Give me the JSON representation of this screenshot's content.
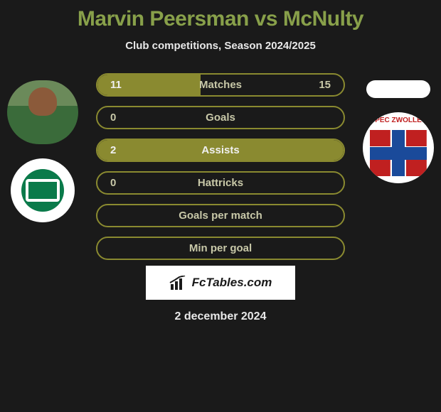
{
  "title": "Marvin Peersman vs McNulty",
  "subtitle": "Club competitions, Season 2024/2025",
  "colors": {
    "title_color": "#88a04a",
    "subtitle_color": "#e8e8e8",
    "background": "#1a1a1a",
    "bar_border": "#8a8a30",
    "bar_fill": "#8a8a30",
    "bar_label_light": "#c8c8a8",
    "bar_label_dark": "#f0f0f0",
    "brand_bg": "#ffffff",
    "brand_text": "#1a1a1a"
  },
  "stats": [
    {
      "label": "Matches",
      "left_val": "11",
      "right_val": "15",
      "fill_pct": 42,
      "label_color": "#c8c8a8",
      "left_val_color": "#f0f0f0",
      "right_val_color": "#c8c8a8"
    },
    {
      "label": "Goals",
      "left_val": "0",
      "right_val": "",
      "fill_pct": 0,
      "label_color": "#c8c8a8",
      "left_val_color": "#c8c8a8",
      "right_val_color": "#c8c8a8"
    },
    {
      "label": "Assists",
      "left_val": "2",
      "right_val": "",
      "fill_pct": 100,
      "label_color": "#f0f0f0",
      "left_val_color": "#f0f0f0",
      "right_val_color": "#f0f0f0"
    },
    {
      "label": "Hattricks",
      "left_val": "0",
      "right_val": "",
      "fill_pct": 0,
      "label_color": "#c8c8a8",
      "left_val_color": "#c8c8a8",
      "right_val_color": "#c8c8a8"
    },
    {
      "label": "Goals per match",
      "left_val": "",
      "right_val": "",
      "fill_pct": 0,
      "label_color": "#c8c8a8",
      "left_val_color": "#c8c8a8",
      "right_val_color": "#c8c8a8"
    },
    {
      "label": "Min per goal",
      "left_val": "",
      "right_val": "",
      "fill_pct": 0,
      "label_color": "#c8c8a8",
      "left_val_color": "#c8c8a8",
      "right_val_color": "#c8c8a8"
    }
  ],
  "brand": {
    "text": "FcTables.com"
  },
  "date": "2 december 2024",
  "left_team": {
    "name": "FC Groningen",
    "badge_bg": "#ffffff",
    "badge_inner": "#0a7a4a"
  },
  "right_team": {
    "name": "PEC Zwolle",
    "badge_text": "PEC ZWOLLE",
    "badge_bg": "#ffffff"
  }
}
